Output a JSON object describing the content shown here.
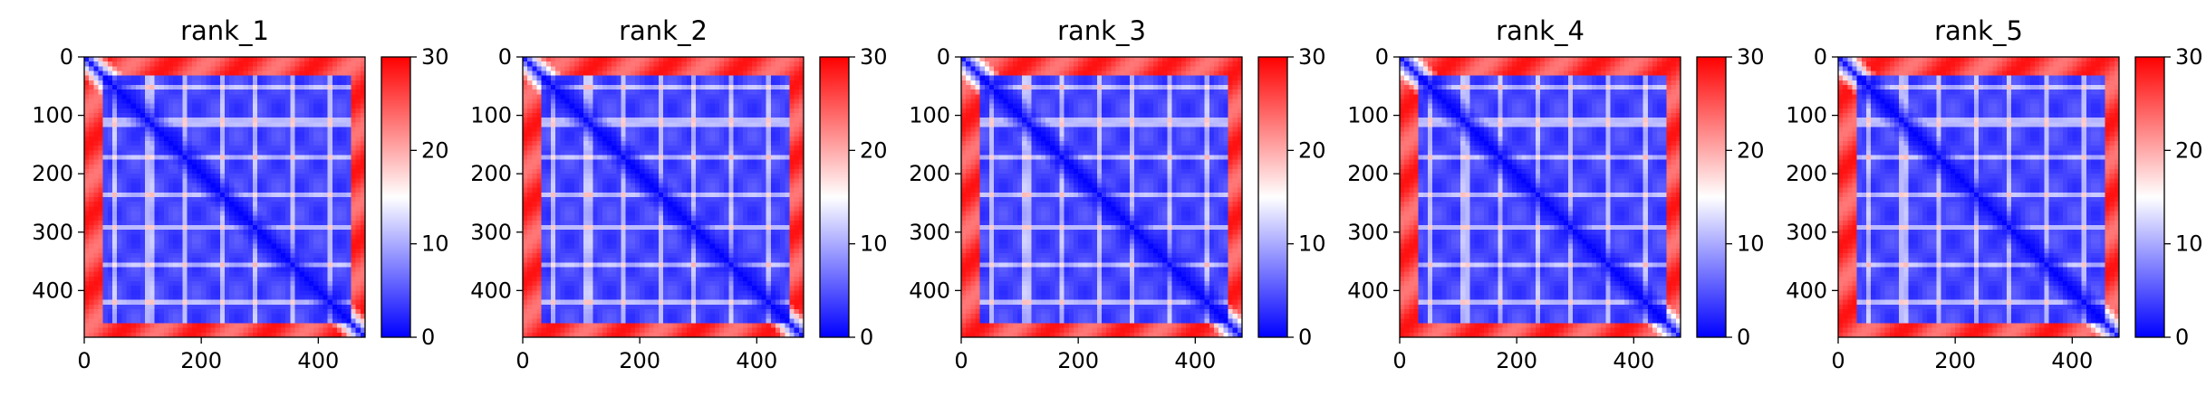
{
  "chart_data": [
    {
      "type": "heatmap",
      "title": "rank_1",
      "xlabel": "",
      "ylabel": "",
      "xlim": [
        0,
        480
      ],
      "ylim": [
        480,
        0
      ],
      "x_ticks": [
        "0",
        "200",
        "400"
      ],
      "y_ticks": [
        "0",
        "100",
        "200",
        "300",
        "400"
      ],
      "colorbar": {
        "range": [
          0,
          30
        ],
        "ticks": [
          "0",
          "10",
          "20",
          "30"
        ],
        "colormap": "bwr"
      },
      "bands": [
        50,
        112,
        170,
        233,
        292,
        355,
        418,
        460
      ]
    },
    {
      "type": "heatmap",
      "title": "rank_2",
      "xlabel": "",
      "ylabel": "",
      "xlim": [
        0,
        480
      ],
      "ylim": [
        480,
        0
      ],
      "x_ticks": [
        "0",
        "200",
        "400"
      ],
      "y_ticks": [
        "0",
        "100",
        "200",
        "300",
        "400"
      ],
      "colorbar": {
        "range": [
          0,
          30
        ],
        "ticks": [
          "0",
          "10",
          "20",
          "30"
        ],
        "colormap": "bwr"
      },
      "bands": [
        50,
        112,
        170,
        233,
        292,
        355,
        418,
        460
      ]
    },
    {
      "type": "heatmap",
      "title": "rank_3",
      "xlabel": "",
      "ylabel": "",
      "xlim": [
        0,
        480
      ],
      "ylim": [
        480,
        0
      ],
      "x_ticks": [
        "0",
        "200",
        "400"
      ],
      "y_ticks": [
        "0",
        "100",
        "200",
        "300",
        "400"
      ],
      "colorbar": {
        "range": [
          0,
          30
        ],
        "ticks": [
          "0",
          "10",
          "20",
          "30"
        ],
        "colormap": "bwr"
      },
      "bands": [
        50,
        112,
        170,
        233,
        292,
        355,
        418,
        460
      ]
    },
    {
      "type": "heatmap",
      "title": "rank_4",
      "xlabel": "",
      "ylabel": "",
      "xlim": [
        0,
        480
      ],
      "ylim": [
        480,
        0
      ],
      "x_ticks": [
        "0",
        "200",
        "400"
      ],
      "y_ticks": [
        "0",
        "100",
        "200",
        "300",
        "400"
      ],
      "colorbar": {
        "range": [
          0,
          30
        ],
        "ticks": [
          "0",
          "10",
          "20",
          "30"
        ],
        "colormap": "bwr"
      },
      "bands": [
        50,
        112,
        170,
        233,
        292,
        355,
        418,
        460
      ]
    },
    {
      "type": "heatmap",
      "title": "rank_5",
      "xlabel": "",
      "ylabel": "",
      "xlim": [
        0,
        480
      ],
      "ylim": [
        480,
        0
      ],
      "x_ticks": [
        "0",
        "200",
        "400"
      ],
      "y_ticks": [
        "0",
        "100",
        "200",
        "300",
        "400"
      ],
      "colorbar": {
        "range": [
          0,
          30
        ],
        "ticks": [
          "0",
          "10",
          "20",
          "30"
        ],
        "colormap": "bwr"
      },
      "bands": [
        50,
        112,
        170,
        233,
        292,
        355,
        418,
        460
      ]
    }
  ]
}
